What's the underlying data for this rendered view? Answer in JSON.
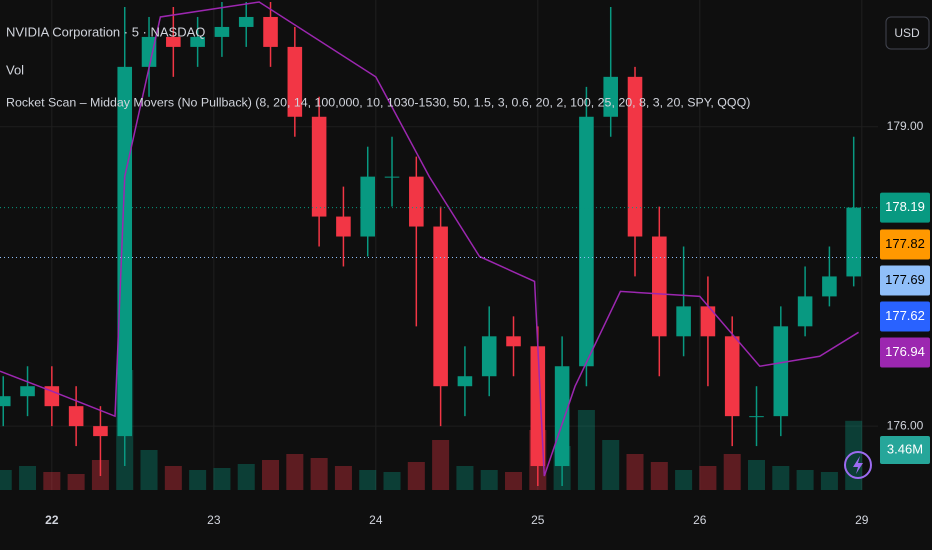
{
  "header": {
    "symbol": "NVIDIA Corporation · 5 · NASDAQ",
    "volume": "Vol",
    "indicator": "Rocket Scan – Midday Movers (No Pullback) (8, 20, 14, 100,000, 10, 1030-1530, 50, 1.5, 3, 0.6, 20, 2, 100, 25, 20, 8, 3, 20, SPY, QQQ)",
    "currency": "USD"
  },
  "chart_data": {
    "type": "candlestick",
    "x": [
      -0.3,
      -0.15,
      0,
      0.15,
      0.3,
      0.45,
      0.6,
      0.75,
      0.9,
      1.05,
      1.2,
      1.35,
      1.5,
      1.65,
      1.8,
      1.95,
      2.1,
      2.25,
      2.4,
      2.55,
      2.7,
      2.85,
      3.0,
      3.15,
      3.3,
      3.45,
      3.6,
      3.75,
      3.9,
      4.05,
      4.2,
      4.35,
      4.5,
      4.65,
      4.8,
      4.95
    ],
    "opens": [
      176.2,
      176.3,
      176.4,
      176.2,
      176.0,
      175.9,
      179.6,
      179.9,
      179.8,
      179.9,
      180.0,
      180.1,
      179.8,
      179.1,
      178.1,
      177.9,
      178.5,
      178.5,
      178.0,
      176.4,
      176.5,
      176.9,
      176.8,
      175.6,
      176.6,
      179.1,
      179.5,
      177.9,
      176.9,
      177.2,
      176.9,
      176.1,
      176.1,
      177.0,
      177.3,
      177.5
    ],
    "highs": [
      176.5,
      176.6,
      176.6,
      176.4,
      176.2,
      180.2,
      180.1,
      180.2,
      180.1,
      180.25,
      180.25,
      180.25,
      180.0,
      179.3,
      178.4,
      178.8,
      178.9,
      178.7,
      178.2,
      176.8,
      177.2,
      177.1,
      177.0,
      176.9,
      179.4,
      180.2,
      179.6,
      178.2,
      177.8,
      177.5,
      177.1,
      176.4,
      177.2,
      177.6,
      177.8,
      178.9
    ],
    "lows": [
      176.0,
      176.1,
      176.0,
      175.8,
      175.5,
      175.6,
      179.3,
      179.5,
      179.6,
      179.7,
      179.8,
      179.6,
      178.9,
      177.8,
      177.6,
      177.7,
      178.2,
      177.0,
      176.0,
      176.1,
      176.3,
      176.5,
      175.4,
      175.4,
      176.4,
      178.9,
      177.5,
      176.5,
      176.7,
      176.4,
      175.8,
      175.8,
      175.9,
      176.9,
      177.2,
      177.4
    ],
    "closes": [
      176.3,
      176.4,
      176.2,
      176.0,
      175.9,
      179.6,
      179.9,
      179.8,
      179.9,
      180.0,
      180.1,
      179.8,
      179.1,
      178.1,
      177.9,
      178.5,
      178.5,
      178.0,
      176.4,
      176.5,
      176.9,
      176.8,
      175.6,
      176.6,
      179.1,
      179.5,
      177.9,
      176.9,
      177.2,
      176.9,
      176.1,
      176.1,
      177.0,
      177.3,
      177.5,
      178.19
    ],
    "volumes": [
      1.0,
      1.2,
      0.9,
      0.8,
      1.5,
      6.0,
      2.0,
      1.2,
      1.0,
      1.1,
      1.3,
      1.5,
      1.8,
      1.6,
      1.2,
      1.0,
      0.9,
      1.4,
      2.5,
      1.2,
      1.0,
      0.9,
      3.0,
      2.2,
      4.0,
      2.5,
      1.8,
      1.4,
      1.0,
      1.2,
      1.8,
      1.5,
      1.2,
      1.0,
      0.9,
      3.46
    ],
    "up_color": "#089981",
    "down_color": "#f23645",
    "overlays": [
      {
        "color": "#9c27b0",
        "x": [
          -0.32,
          0,
          0.39,
          0.45,
          0.67,
          1.28,
          2.0,
          2.33,
          2.64,
          2.98,
          3.04,
          3.23,
          3.51,
          4.0,
          4.37,
          4.74,
          4.98
        ],
        "values": [
          176.55,
          176.35,
          176.1,
          178.5,
          180.1,
          180.25,
          179.5,
          178.5,
          177.7,
          177.45,
          175.5,
          176.4,
          177.35,
          177.3,
          176.6,
          176.7,
          176.94
        ]
      }
    ],
    "xlim": [
      -0.32,
      5.1
    ],
    "xticks": [
      {
        "value": 0,
        "label": "22"
      },
      {
        "value": 1,
        "label": "23"
      },
      {
        "value": 2,
        "label": "24"
      },
      {
        "value": 3,
        "label": "25"
      },
      {
        "value": 4,
        "label": "26"
      },
      {
        "value": 5,
        "label": "29"
      }
    ],
    "ylim": [
      175.36,
      180.27
    ],
    "yticks": [
      {
        "value": 179,
        "label": "179.00"
      },
      {
        "value": 176,
        "label": "176.00"
      }
    ],
    "grid": true,
    "price_labels": [
      {
        "value": 178.19,
        "color": "#089981",
        "text_color": "#ffffff",
        "line": true
      },
      {
        "value": 177.82,
        "color": "#ff9800",
        "text_color": "#000000",
        "line": false
      },
      {
        "value": 177.69,
        "color": "#90bff9",
        "text_color": "#000000",
        "line": true
      },
      {
        "value": 177.62,
        "color": "#2962ff",
        "text_color": "#ffffff",
        "line": false
      },
      {
        "value": 176.94,
        "color": "#9c27b0",
        "text_color": "#ffffff",
        "line": false
      }
    ],
    "volume_label": {
      "value": 3.46,
      "label": "3.46M",
      "color": "#26a69a"
    }
  }
}
